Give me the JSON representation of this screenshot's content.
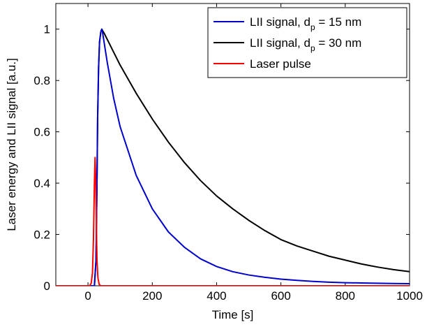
{
  "chart_data": {
    "type": "line",
    "title": "",
    "xlabel": "Time [s]",
    "ylabel": "Laser energy and LII signal [a.u.]",
    "xlim": [
      -100,
      1000
    ],
    "ylim": [
      0,
      1.1
    ],
    "xticks": [
      0,
      200,
      400,
      600,
      800,
      1000
    ],
    "xtick_labels": [
      "0",
      "200",
      "400",
      "600",
      "800",
      "1000"
    ],
    "yticks": [
      0,
      0.2,
      0.4,
      0.6,
      0.8,
      1
    ],
    "ytick_labels": [
      "0",
      "0.2",
      "0.4",
      "0.6",
      "0.8",
      "1"
    ],
    "grid": false,
    "legend_position": "top-right",
    "series": [
      {
        "name": "LII signal, d = 15 nm",
        "legend": {
          "base": "LII signal, d",
          "sub": "p",
          "rest": " = 15 nm"
        },
        "color": "#0000cc",
        "x": [
          -100,
          0,
          20,
          25,
          28,
          30,
          33,
          36,
          40,
          43,
          45,
          50,
          60,
          80,
          100,
          150,
          200,
          250,
          300,
          350,
          400,
          450,
          500,
          550,
          600,
          650,
          700,
          750,
          800,
          850,
          900,
          950,
          1000
        ],
        "y": [
          0,
          0,
          0,
          0.1,
          0.4,
          0.65,
          0.85,
          0.95,
          0.99,
          1.0,
          0.99,
          0.95,
          0.87,
          0.73,
          0.62,
          0.43,
          0.3,
          0.21,
          0.15,
          0.105,
          0.075,
          0.055,
          0.042,
          0.033,
          0.026,
          0.021,
          0.017,
          0.014,
          0.012,
          0.011,
          0.01,
          0.009,
          0.008
        ]
      },
      {
        "name": "LII signal, d = 30 nm",
        "legend": {
          "base": "LII signal, d",
          "sub": "p",
          "rest": " = 30 nm"
        },
        "color": "#000000",
        "x": [
          -100,
          0,
          20,
          25,
          28,
          30,
          33,
          36,
          40,
          43,
          45,
          50,
          60,
          80,
          100,
          150,
          200,
          250,
          300,
          350,
          400,
          450,
          500,
          550,
          600,
          650,
          700,
          750,
          800,
          850,
          900,
          950,
          1000
        ],
        "y": [
          0,
          0,
          0,
          0.1,
          0.4,
          0.65,
          0.85,
          0.95,
          0.99,
          1.0,
          0.995,
          0.985,
          0.96,
          0.91,
          0.86,
          0.75,
          0.65,
          0.56,
          0.48,
          0.41,
          0.35,
          0.3,
          0.255,
          0.215,
          0.18,
          0.155,
          0.135,
          0.115,
          0.1,
          0.085,
          0.073,
          0.063,
          0.055
        ]
      },
      {
        "name": "Laser pulse",
        "legend": {
          "base": "Laser pulse",
          "sub": "",
          "rest": ""
        },
        "color": "#ff0000",
        "x": [
          -100,
          5,
          10,
          14,
          17,
          20,
          22,
          24,
          26,
          28,
          31,
          35,
          40,
          1000
        ],
        "y": [
          0,
          0,
          0.01,
          0.05,
          0.18,
          0.4,
          0.5,
          0.42,
          0.25,
          0.1,
          0.03,
          0.005,
          0,
          0
        ]
      }
    ]
  }
}
